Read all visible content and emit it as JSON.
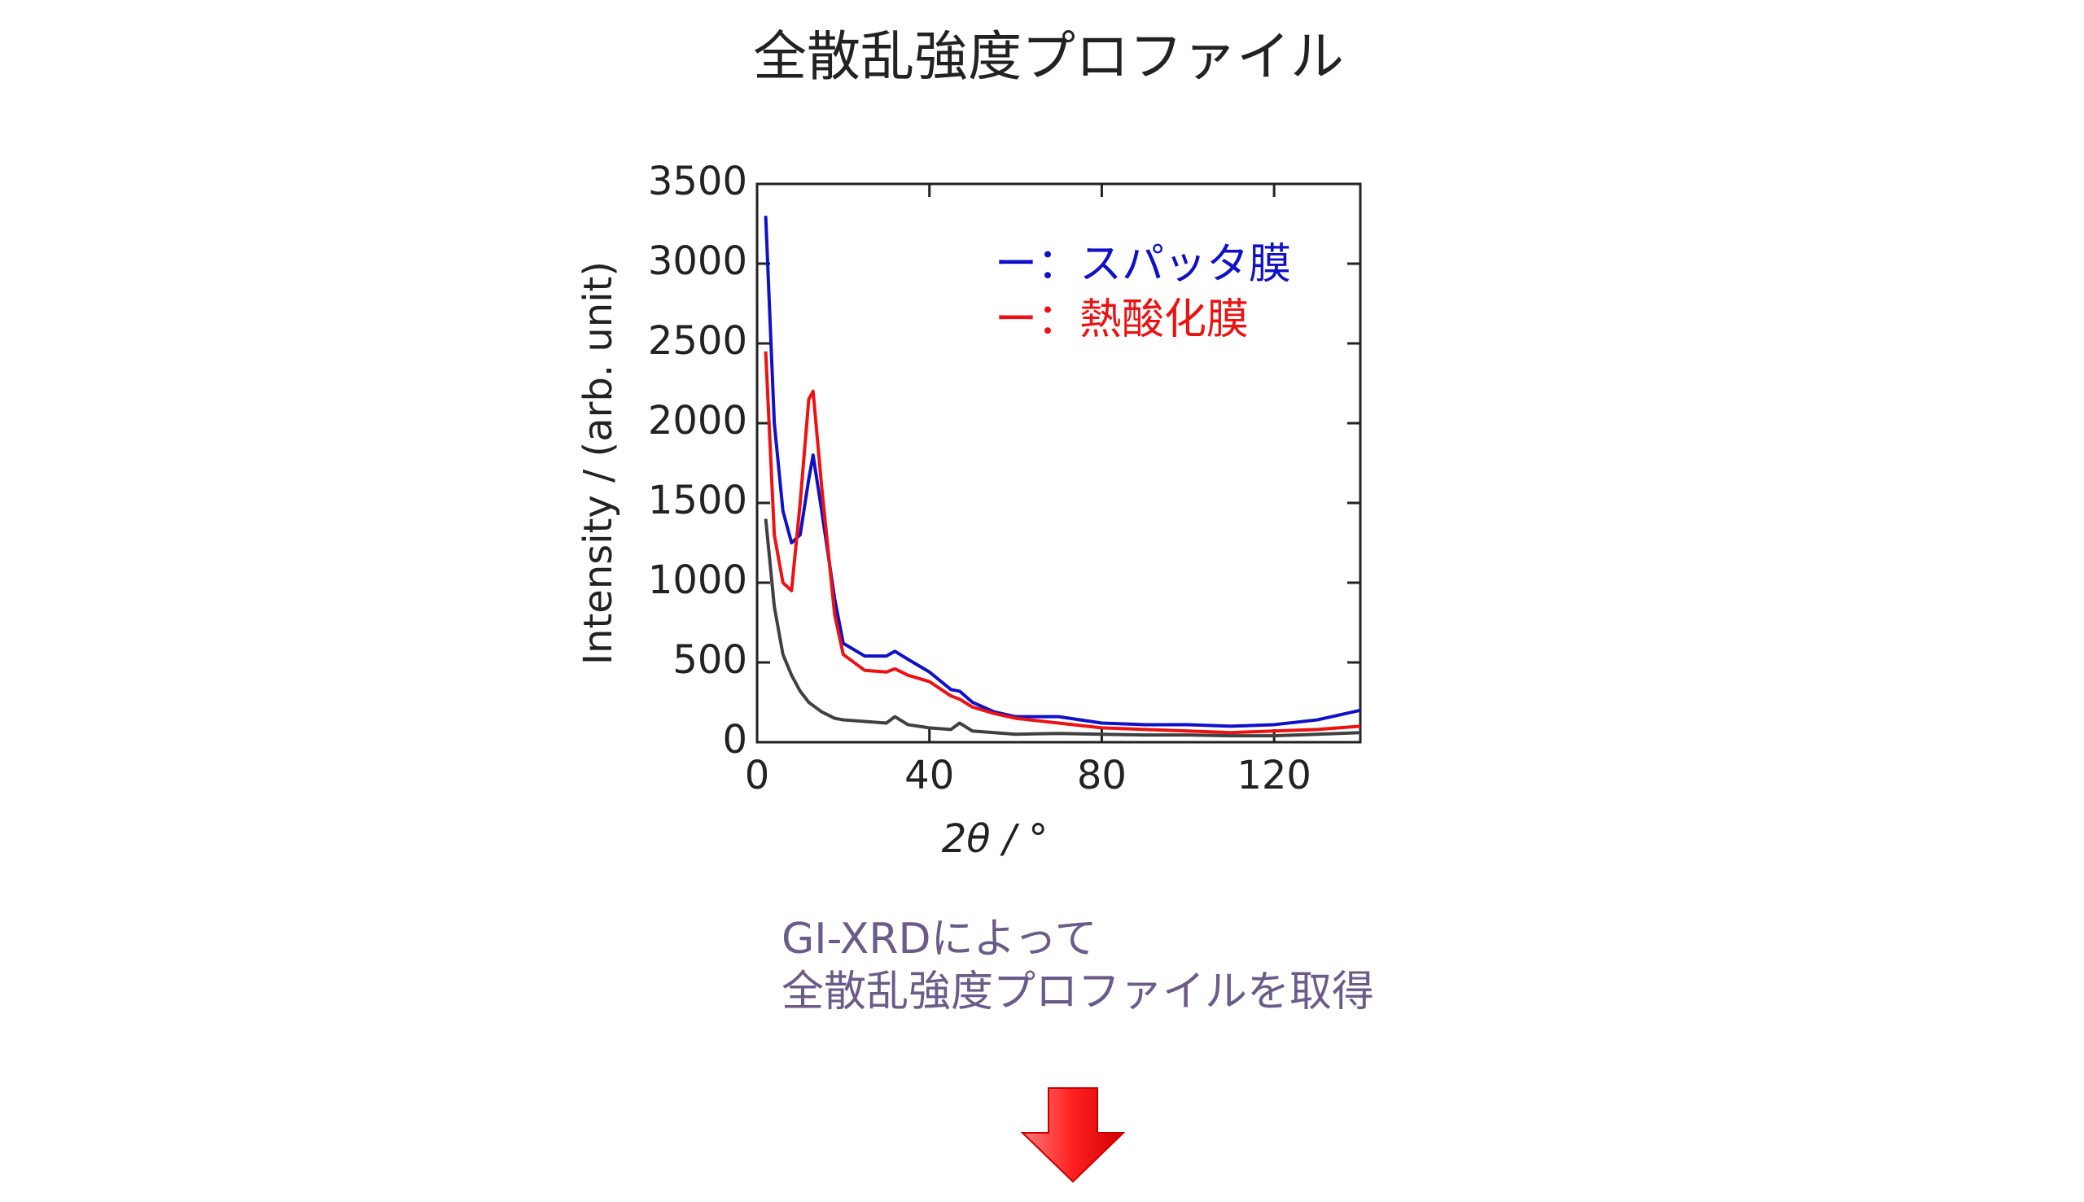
{
  "chart_data": {
    "type": "line",
    "title": "全散乱強度プロファイル",
    "xlabel": "2θ / °",
    "ylabel": "Intensity / (arb. unit)",
    "x": [
      2,
      4,
      6,
      8,
      10,
      12,
      13,
      15,
      18,
      20,
      25,
      30,
      32,
      35,
      40,
      45,
      47,
      50,
      55,
      60,
      70,
      80,
      90,
      100,
      110,
      120,
      130,
      140
    ],
    "series": [
      {
        "name": "ー：スパッタ膜",
        "color": "#1010c8",
        "values": [
          3300,
          2000,
          1450,
          1250,
          1300,
          1650,
          1800,
          1450,
          900,
          620,
          540,
          540,
          570,
          520,
          440,
          330,
          320,
          250,
          190,
          160,
          160,
          120,
          110,
          110,
          100,
          110,
          140,
          200
        ]
      },
      {
        "name": "ー：熱酸化膜",
        "color": "#ee1111",
        "values": [
          2450,
          1300,
          1000,
          950,
          1500,
          2150,
          2200,
          1600,
          800,
          550,
          450,
          440,
          460,
          420,
          380,
          290,
          270,
          220,
          180,
          150,
          120,
          90,
          80,
          70,
          60,
          70,
          80,
          100
        ]
      },
      {
        "color": "#404040",
        "values": [
          1400,
          850,
          550,
          420,
          320,
          250,
          230,
          190,
          150,
          140,
          130,
          120,
          160,
          110,
          90,
          80,
          120,
          70,
          60,
          50,
          55,
          50,
          45,
          45,
          40,
          40,
          50,
          60
        ]
      }
    ],
    "xlim": [
      0,
      140
    ],
    "xticks": [
      0,
      40,
      80,
      120
    ],
    "ylim": [
      0,
      3500
    ],
    "yticks": [
      0,
      500,
      1000,
      1500,
      2000,
      2500,
      3000,
      3500
    ]
  },
  "caption": {
    "lines": [
      "GI-XRDによって",
      "全散乱強度プロファイルを取得"
    ]
  }
}
